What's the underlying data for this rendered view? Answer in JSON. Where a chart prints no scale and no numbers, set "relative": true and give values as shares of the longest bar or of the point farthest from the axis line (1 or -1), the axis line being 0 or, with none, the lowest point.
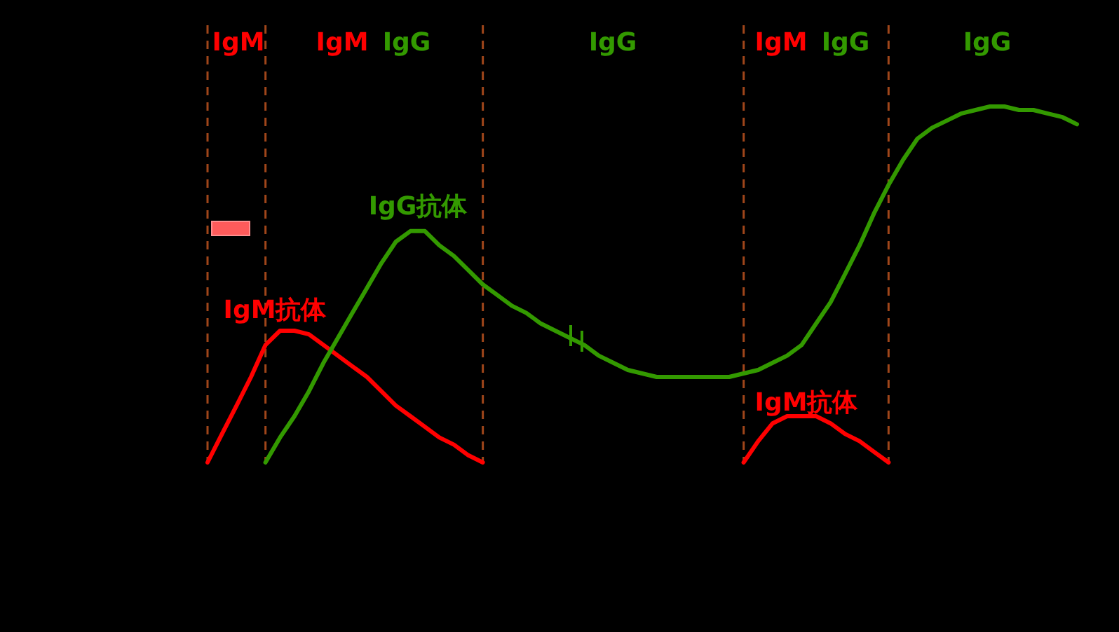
{
  "chart_data": {
    "type": "line",
    "relative": true,
    "grid": "x",
    "categories": [
      null,
      null,
      null,
      null,
      null,
      null,
      null,
      null,
      null,
      null,
      null,
      null,
      null,
      null,
      null,
      null,
      null,
      null,
      null,
      null,
      null,
      null,
      null,
      null,
      null,
      null,
      null,
      null,
      null,
      null,
      null,
      null,
      null,
      null,
      null,
      null,
      null,
      null,
      null,
      null,
      null,
      null,
      null,
      null,
      null,
      null,
      null,
      null,
      null,
      null,
      null,
      null,
      null,
      null,
      null,
      null,
      null,
      null,
      null,
      null,
      null
    ],
    "series": [
      {
        "name": "IgM抗体",
        "color": "#ff0000",
        "values": [
          0,
          0.08,
          0.16,
          0.24,
          0.33,
          0.37,
          0.37,
          0.36,
          0.33,
          0.3,
          0.27,
          0.24,
          0.2,
          0.16,
          0.13,
          0.1,
          0.07,
          0.05,
          0.02,
          0,
          null,
          null,
          null,
          null,
          null,
          null,
          null,
          null,
          null,
          null,
          null,
          null,
          null,
          null,
          null,
          null,
          null,
          null,
          null,
          null,
          null,
          null,
          null,
          null,
          null,
          null,
          null,
          null,
          null,
          null,
          null,
          null,
          null,
          null,
          null,
          null,
          null,
          null,
          null,
          null,
          null
        ]
      },
      {
        "name": "IgG抗体",
        "color": "#339900",
        "values": [
          null,
          null,
          null,
          null,
          0,
          0.07,
          0.13,
          0.2,
          0.28,
          0.35,
          0.42,
          0.49,
          0.56,
          0.62,
          0.65,
          0.65,
          0.61,
          0.58,
          0.54,
          0.5,
          0.47,
          0.44,
          0.42,
          0.39,
          0.37,
          0.35,
          0.33,
          0.3,
          0.28,
          0.26,
          0.25,
          0.24,
          0.24,
          0.24,
          0.24,
          0.24,
          0.24,
          0.25,
          0.26,
          0.28,
          0.3,
          0.33,
          0.39,
          0.45,
          0.53,
          0.61,
          0.7,
          0.78,
          0.85,
          0.91,
          0.94,
          0.96,
          0.98,
          0.99,
          1.0,
          1.0,
          0.99,
          0.99,
          0.98,
          0.97,
          0.95
        ]
      },
      {
        "name": "IgM抗体",
        "color": "#ff0000",
        "values": [
          null,
          null,
          null,
          null,
          null,
          null,
          null,
          null,
          null,
          null,
          null,
          null,
          null,
          null,
          null,
          null,
          null,
          null,
          null,
          null,
          null,
          null,
          null,
          null,
          null,
          null,
          null,
          null,
          null,
          null,
          null,
          null,
          null,
          null,
          null,
          null,
          null,
          0,
          0.06,
          0.11,
          0.13,
          0.13,
          0.13,
          0.11,
          0.08,
          0.06,
          0.03,
          0,
          null,
          null,
          null,
          null,
          null,
          null,
          null,
          null,
          null,
          null,
          null,
          null,
          null
        ]
      }
    ],
    "annotations": [
      "IgM",
      "IgM",
      "IgG",
      "IgG",
      "IgM",
      "IgG",
      "IgG"
    ]
  }
}
